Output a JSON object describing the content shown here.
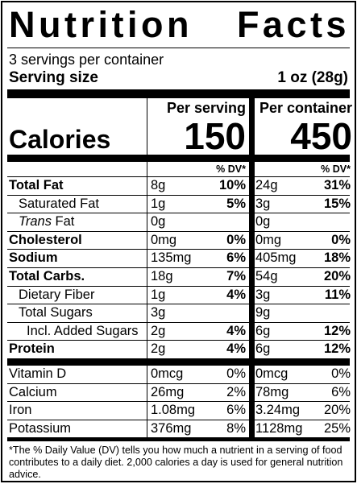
{
  "title": {
    "word1": "Nutrition",
    "word2": "Facts"
  },
  "servings_per_container": "3 servings per container",
  "serving_size": {
    "label": "Serving size",
    "value": "1 oz (28g)"
  },
  "calories": {
    "label": "Calories",
    "per_serving_head": "Per serving",
    "per_container_head": "Per container",
    "per_serving": "150",
    "per_container": "450"
  },
  "dv_head": "% DV*",
  "nutrients": [
    {
      "name": "Total Fat",
      "bold": true,
      "indent": 0,
      "a1": "8g",
      "p1": "10%",
      "a2": "24g",
      "p2": "31%"
    },
    {
      "name": "Saturated Fat",
      "bold": false,
      "indent": 1,
      "a1": "1g",
      "p1": "5%",
      "a2": "3g",
      "p2": "15%"
    },
    {
      "name_italic": "Trans",
      "name": " Fat",
      "bold": false,
      "indent": 1,
      "a1": "0g",
      "p1": "",
      "a2": "0g",
      "p2": ""
    },
    {
      "name": "Cholesterol",
      "bold": true,
      "indent": 0,
      "a1": "0mg",
      "p1": "0%",
      "a2": "0mg",
      "p2": "0%"
    },
    {
      "name": "Sodium",
      "bold": true,
      "indent": 0,
      "a1": "135mg",
      "p1": "6%",
      "a2": "405mg",
      "p2": "18%"
    },
    {
      "name": "Total Carbs.",
      "bold": true,
      "indent": 0,
      "a1": "18g",
      "p1": "7%",
      "a2": "54g",
      "p2": "20%"
    },
    {
      "name": "Dietary Fiber",
      "bold": false,
      "indent": 1,
      "a1": "1g",
      "p1": "4%",
      "a2": "3g",
      "p2": "11%"
    },
    {
      "name": "Total Sugars",
      "bold": false,
      "indent": 1,
      "a1": "3g",
      "p1": "",
      "a2": "9g",
      "p2": ""
    },
    {
      "name": "Incl. Added Sugars",
      "bold": false,
      "indent": 2,
      "a1": "2g",
      "p1": "4%",
      "a2": "6g",
      "p2": "12%"
    },
    {
      "name": "Protein",
      "bold": true,
      "indent": 0,
      "a1": "2g",
      "p1": "4%",
      "a2": "6g",
      "p2": "12%"
    }
  ],
  "vitamins": [
    {
      "name": "Vitamin D",
      "a1": "0mcg",
      "p1": "0%",
      "a2": "0mcg",
      "p2": "0%"
    },
    {
      "name": "Calcium",
      "a1": "26mg",
      "p1": "2%",
      "a2": "78mg",
      "p2": "6%"
    },
    {
      "name": "Iron",
      "a1": "1.08mg",
      "p1": "6%",
      "a2": "3.24mg",
      "p2": "20%"
    },
    {
      "name": "Potassium",
      "a1": "376mg",
      "p1": "8%",
      "a2": "1128mg",
      "p2": "25%"
    }
  ],
  "footnote": "The % Daily Value (DV) tells you how much a nutrient in a serving of food contributes to a daily diet. 2,000 calories a day is used for general nutrition advice.",
  "footnote_mark": "*"
}
